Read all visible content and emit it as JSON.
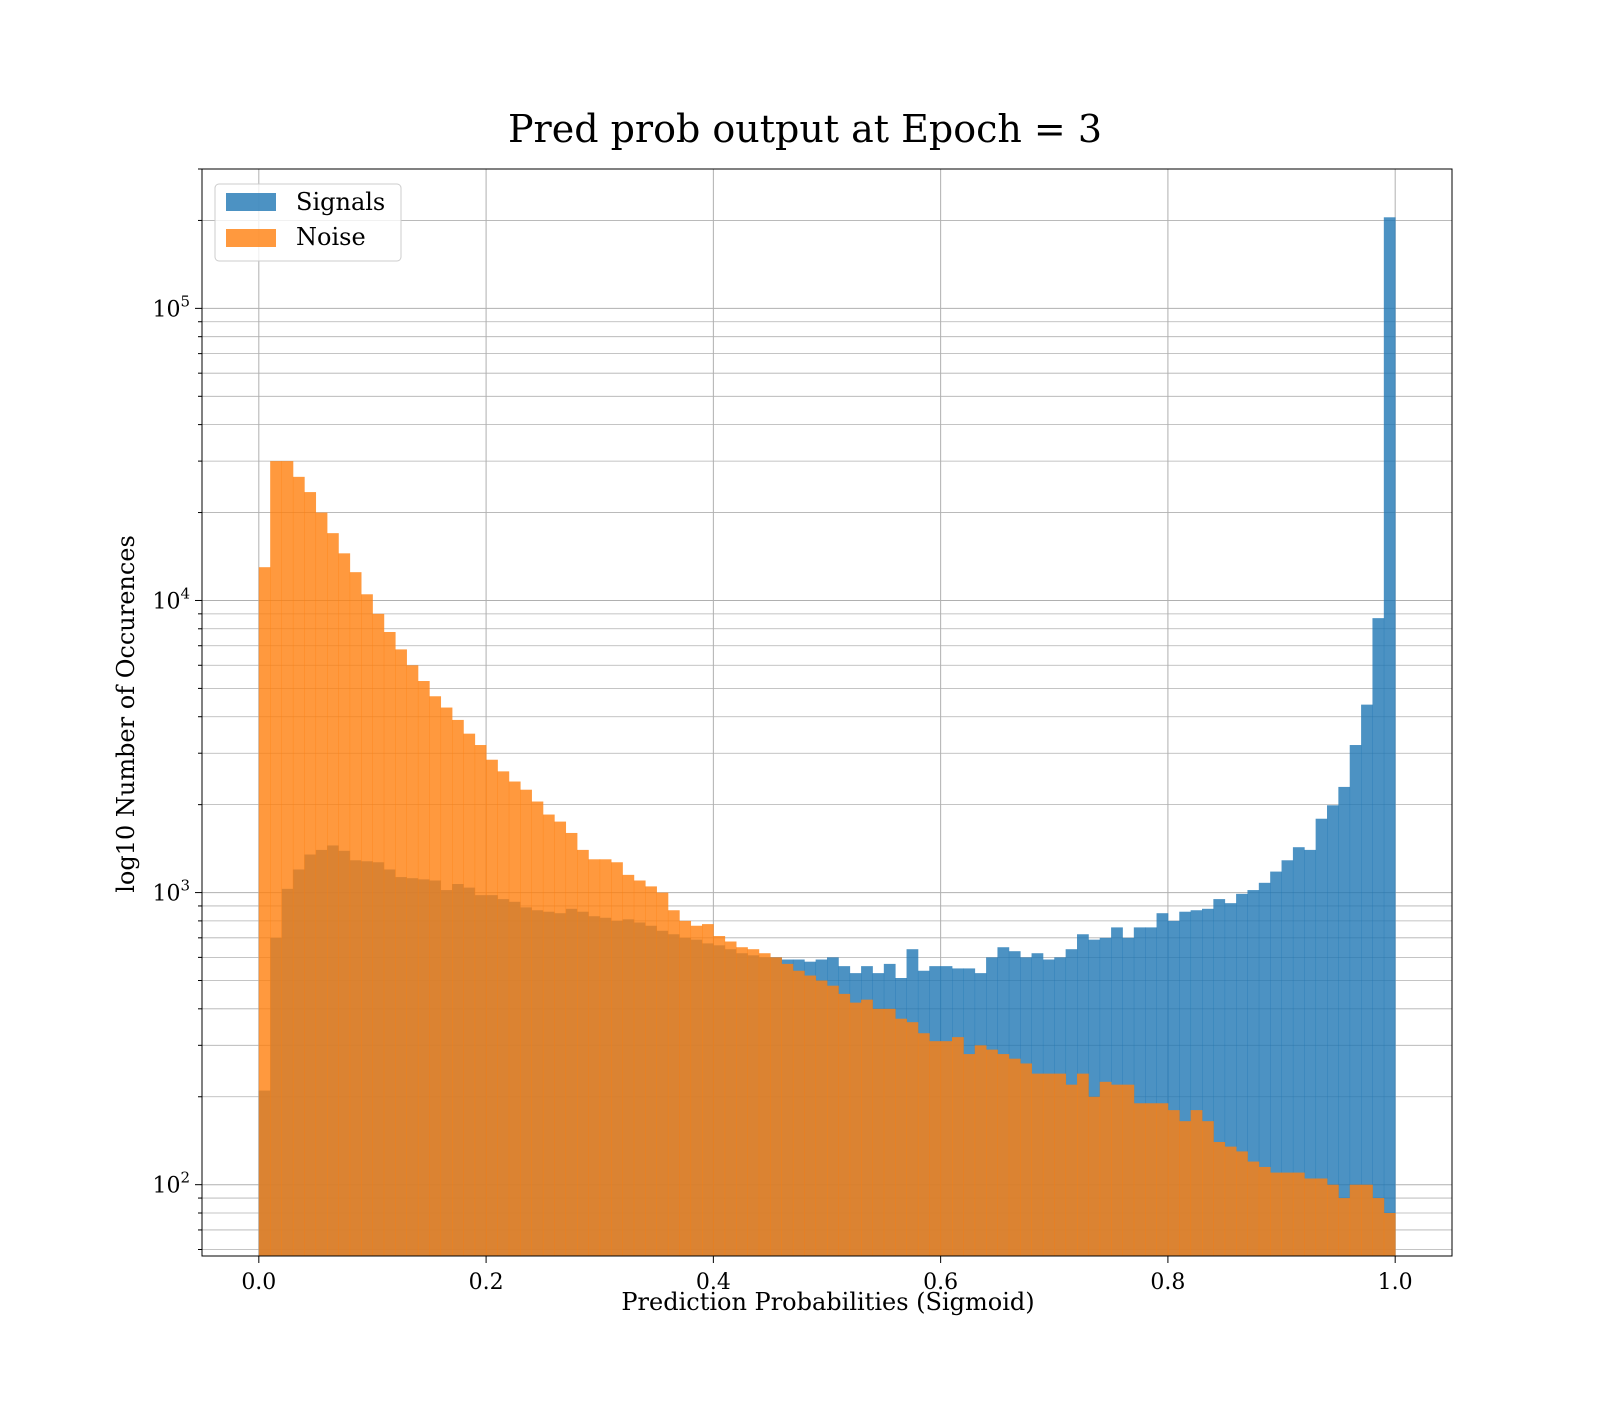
{
  "chart_data": {
    "type": "histogram",
    "title": "Pred prob output at Epoch = 3",
    "xlabel": "Prediction Probabilities (Sigmoid)",
    "ylabel": "log10 Number of Occurences",
    "x_scale": "linear",
    "y_scale": "log",
    "xlim": [
      -0.05,
      1.05
    ],
    "ylim": [
      57,
      300000
    ],
    "x_ticks": [
      0.0,
      0.2,
      0.4,
      0.6,
      0.8,
      1.0
    ],
    "x_tick_labels": [
      "0.0",
      "0.2",
      "0.4",
      "0.6",
      "0.8",
      "1.0"
    ],
    "y_ticks": [
      100,
      1000,
      10000,
      100000
    ],
    "y_tick_labels": [
      {
        "base": "10",
        "exp": "2"
      },
      {
        "base": "10",
        "exp": "3"
      },
      {
        "base": "10",
        "exp": "4"
      },
      {
        "base": "10",
        "exp": "5"
      }
    ],
    "grid": true,
    "legend_position": "top-left",
    "bin_edges_range": [
      0.0,
      1.0
    ],
    "bins": 100,
    "series": [
      {
        "name": "Signals",
        "color": "#1f77b4",
        "alpha": 0.8,
        "values": [
          210,
          700,
          1030,
          1200,
          1350,
          1400,
          1450,
          1390,
          1290,
          1280,
          1270,
          1200,
          1130,
          1120,
          1110,
          1100,
          1020,
          1070,
          1040,
          980,
          980,
          950,
          930,
          890,
          870,
          860,
          850,
          880,
          860,
          830,
          820,
          800,
          810,
          790,
          770,
          740,
          720,
          700,
          690,
          670,
          660,
          640,
          620,
          610,
          600,
          600,
          590,
          590,
          580,
          590,
          600,
          560,
          530,
          560,
          530,
          570,
          510,
          640,
          540,
          560,
          560,
          550,
          550,
          530,
          600,
          650,
          630,
          600,
          620,
          590,
          600,
          640,
          720,
          690,
          700,
          760,
          700,
          760,
          760,
          850,
          800,
          860,
          870,
          880,
          950,
          920,
          990,
          1020,
          1080,
          1180,
          1290,
          1430,
          1400,
          1790,
          1990,
          2300,
          3200,
          4400,
          8700,
          205000
        ]
      },
      {
        "name": "Noise",
        "color": "#ff7f0e",
        "alpha": 0.8,
        "values": [
          13000,
          30000,
          30000,
          26500,
          23500,
          20000,
          17000,
          14500,
          12500,
          10500,
          9000,
          7800,
          6800,
          6000,
          5300,
          4700,
          4300,
          3900,
          3500,
          3200,
          2850,
          2600,
          2400,
          2250,
          2050,
          1850,
          1750,
          1600,
          1400,
          1300,
          1300,
          1270,
          1150,
          1100,
          1050,
          1000,
          870,
          800,
          770,
          780,
          710,
          680,
          650,
          640,
          620,
          600,
          570,
          540,
          520,
          500,
          480,
          450,
          420,
          430,
          400,
          400,
          370,
          360,
          330,
          310,
          310,
          320,
          280,
          300,
          290,
          280,
          270,
          260,
          240,
          240,
          240,
          220,
          240,
          200,
          225,
          220,
          220,
          190,
          190,
          190,
          180,
          165,
          180,
          165,
          140,
          135,
          130,
          120,
          115,
          110,
          110,
          110,
          105,
          105,
          100,
          90,
          100,
          100,
          90,
          80
        ]
      }
    ]
  }
}
